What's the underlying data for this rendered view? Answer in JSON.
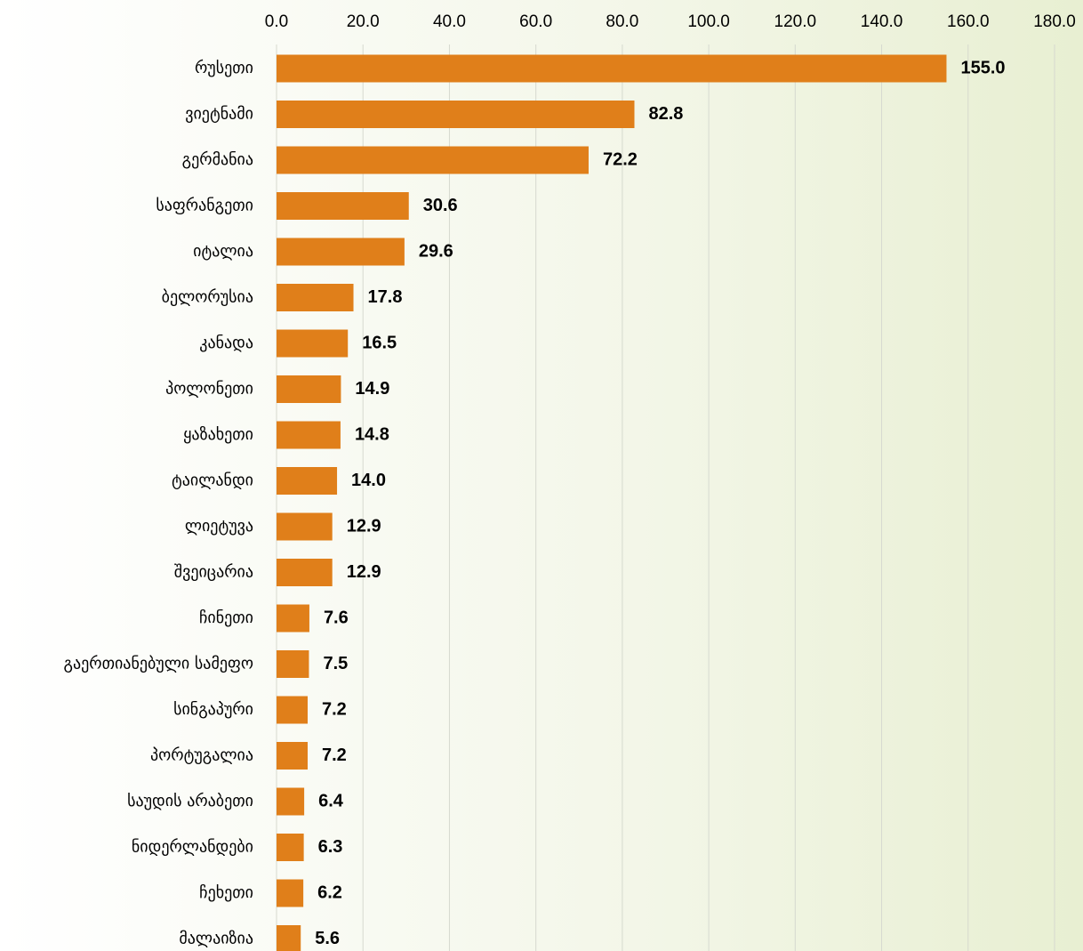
{
  "chart_data": {
    "type": "barh",
    "categories": [
      "რუსეთი",
      "ვიეტნამი",
      "გერმანია",
      "საფრანგეთი",
      "იტალია",
      "ბელორუსია",
      "კანადა",
      "პოლონეთი",
      "ყაზახეთი",
      "ტაილანდი",
      "ლიეტუვა",
      "შვეიცარია",
      "ჩინეთი",
      "გაერთიანებული სამეფო",
      "სინგაპური",
      "პორტუგალია",
      "საუდის არაბეთი",
      "ნიდერლანდები",
      "ჩეხეთი",
      "მალაიზია"
    ],
    "values": [
      155.0,
      82.8,
      72.2,
      30.6,
      29.6,
      17.8,
      16.5,
      14.9,
      14.8,
      14.0,
      12.9,
      12.9,
      7.6,
      7.5,
      7.2,
      7.2,
      6.4,
      6.3,
      6.2,
      5.6
    ],
    "value_labels": [
      "155.0",
      "82.8",
      "72.2",
      "30.6",
      "29.6",
      "17.8",
      "16.5",
      "14.9",
      "14.8",
      "14.0",
      "12.9",
      "12.9",
      "7.6",
      "7.5",
      "7.2",
      "7.2",
      "6.4",
      "6.3",
      "6.2",
      "5.6"
    ],
    "color": "#e07f1a",
    "xlim": [
      0,
      180
    ],
    "xticks": [
      {
        "value": 0,
        "label": "0.0"
      },
      {
        "value": 20,
        "label": "20.0"
      },
      {
        "value": 40,
        "label": "40.0"
      },
      {
        "value": 60,
        "label": "60.0"
      },
      {
        "value": 80,
        "label": "80.0"
      },
      {
        "value": 100,
        "label": "100.0"
      },
      {
        "value": 120,
        "label": "120.0"
      },
      {
        "value": 140,
        "label": "140.0"
      },
      {
        "value": 160,
        "label": "160.0"
      },
      {
        "value": 180,
        "label": "180.0"
      }
    ],
    "grid": true
  }
}
